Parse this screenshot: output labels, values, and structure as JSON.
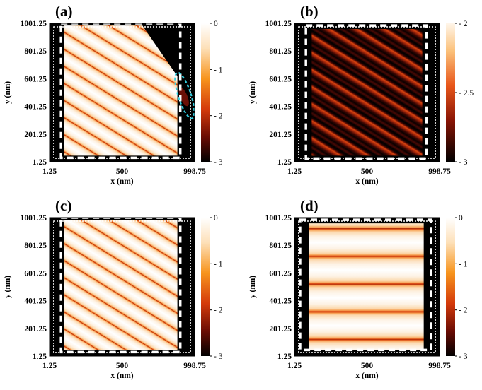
{
  "figure": {
    "colors": {
      "ink": "#000000",
      "dashed_white": "#ffffff",
      "ellipse": "#33cfe0"
    }
  },
  "chart_data": [
    {
      "type": "heatmap",
      "panel_label": "(a)",
      "xlabel": "x (nm)",
      "ylabel": "y (nm)",
      "xticks": [
        "1.25",
        "500",
        "998.75"
      ],
      "yticks": [
        "1001.25",
        "801.25",
        "601.25",
        "401.25",
        "201.25",
        "1.25"
      ],
      "xlim": [
        1.25,
        998.75
      ],
      "ylim": [
        1.25,
        1001.25
      ],
      "colorbar": {
        "ticks": [
          "0",
          "- 1",
          "- 2",
          "- 3"
        ],
        "range": [
          -3,
          0
        ]
      },
      "pattern": "diagonal-fringes",
      "fringe_period_nm": 200,
      "fringe_slope": -1.7,
      "annotation": "dashed-ellipse"
    },
    {
      "type": "heatmap",
      "panel_label": "(b)",
      "xlabel": "x (nm)",
      "ylabel": "y (nm)",
      "xticks": [
        "1.25",
        "500",
        "998.75"
      ],
      "yticks": [
        "1001.25",
        "801.25",
        "601.25",
        "401.25",
        "201.25",
        "1.25"
      ],
      "xlim": [
        1.25,
        998.75
      ],
      "ylim": [
        1.25,
        1001.25
      ],
      "colorbar": {
        "ticks": [
          "- 2",
          "- 2.5",
          "- 3"
        ],
        "range": [
          -3,
          -2
        ]
      },
      "pattern": "diagonal-fringes",
      "fringe_period_nm": 200,
      "fringe_slope": -1.7
    },
    {
      "type": "heatmap",
      "panel_label": "(c)",
      "xlabel": "x (nm)",
      "ylabel": "y (nm)",
      "xticks": [
        "1.25",
        "500",
        "998.75"
      ],
      "yticks": [
        "1001.25",
        "801.25",
        "601.25",
        "401.25",
        "201.25",
        "1.25"
      ],
      "xlim": [
        1.25,
        998.75
      ],
      "ylim": [
        1.25,
        1001.25
      ],
      "colorbar": {
        "ticks": [
          "0",
          "- 1",
          "- 2",
          "- 3"
        ],
        "range": [
          -3,
          0
        ]
      },
      "pattern": "diagonal-fringes",
      "fringe_period_nm": 200,
      "fringe_slope": -1.7
    },
    {
      "type": "heatmap",
      "panel_label": "(d)",
      "xlabel": "x (nm)",
      "ylabel": "y (nm)",
      "xticks": [
        "1.25",
        "500",
        "998.75"
      ],
      "yticks": [
        "1001.25",
        "801.25",
        "601.25",
        "401.25",
        "201.25",
        "1.25"
      ],
      "xlim": [
        1.25,
        998.75
      ],
      "ylim": [
        1.25,
        1001.25
      ],
      "colorbar": {
        "ticks": [
          "0",
          "- 1",
          "- 2",
          "- 3"
        ],
        "range": [
          -3,
          0
        ]
      },
      "pattern": "horizontal-fringes",
      "fringe_y_nm": [
        221,
        421,
        621,
        821
      ]
    }
  ]
}
